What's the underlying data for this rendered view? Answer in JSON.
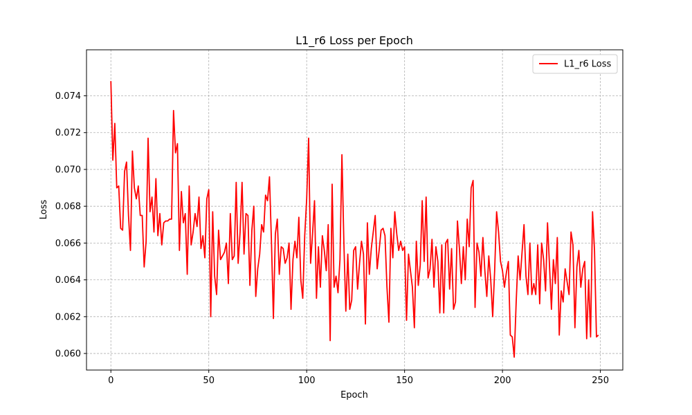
{
  "chart_data": {
    "type": "line",
    "title": "L1_r6 Loss per Epoch",
    "xlabel": "Epoch",
    "ylabel": "Loss",
    "xlim": [
      -12.45,
      261.45
    ],
    "ylim": [
      0.0591,
      0.0765
    ],
    "xticks": [
      0,
      50,
      100,
      150,
      200,
      250
    ],
    "xtick_labels": [
      "0",
      "50",
      "100",
      "150",
      "200",
      "250"
    ],
    "yticks": [
      0.06,
      0.062,
      0.064,
      0.066,
      0.068,
      0.07,
      0.072,
      0.074
    ],
    "ytick_labels": [
      "0.060",
      "0.062",
      "0.064",
      "0.066",
      "0.068",
      "0.070",
      "0.072",
      "0.074"
    ],
    "grid": true,
    "legend_position": "top-right",
    "series": [
      {
        "name": "L1_r6 Loss",
        "color": "#ff0000",
        "x": [
          0,
          1,
          2,
          3,
          4,
          5,
          6,
          7,
          8,
          9,
          10,
          11,
          12,
          13,
          14,
          15,
          16,
          17,
          18,
          19,
          20,
          21,
          22,
          23,
          24,
          25,
          26,
          27,
          28,
          29,
          30,
          31,
          32,
          33,
          34,
          35,
          36,
          37,
          38,
          39,
          40,
          41,
          42,
          43,
          44,
          45,
          46,
          47,
          48,
          49,
          50,
          51,
          52,
          53,
          54,
          55,
          56,
          57,
          58,
          59,
          60,
          61,
          62,
          63,
          64,
          65,
          66,
          67,
          68,
          69,
          70,
          71,
          72,
          73,
          74,
          75,
          76,
          77,
          78,
          79,
          80,
          81,
          82,
          83,
          84,
          85,
          86,
          87,
          88,
          89,
          90,
          91,
          92,
          93,
          94,
          95,
          96,
          97,
          98,
          99,
          100,
          101,
          102,
          103,
          104,
          105,
          106,
          107,
          108,
          109,
          110,
          111,
          112,
          113,
          114,
          115,
          116,
          117,
          118,
          119,
          120,
          121,
          122,
          123,
          124,
          125,
          126,
          127,
          128,
          129,
          130,
          131,
          132,
          133,
          134,
          135,
          136,
          137,
          138,
          139,
          140,
          141,
          142,
          143,
          144,
          145,
          146,
          147,
          148,
          149,
          150,
          151,
          152,
          153,
          154,
          155,
          156,
          157,
          158,
          159,
          160,
          161,
          162,
          163,
          164,
          165,
          166,
          167,
          168,
          169,
          170,
          171,
          172,
          173,
          174,
          175,
          176,
          177,
          178,
          179,
          180,
          181,
          182,
          183,
          184,
          185,
          186,
          187,
          188,
          189,
          190,
          191,
          192,
          193,
          194,
          195,
          196,
          197,
          198,
          199,
          200,
          201,
          202,
          203,
          204,
          205,
          206,
          207,
          208,
          209,
          210,
          211,
          212,
          213,
          214,
          215,
          216,
          217,
          218,
          219,
          220,
          221,
          222,
          223,
          224,
          225,
          226,
          227,
          228,
          229,
          230,
          231,
          232,
          233,
          234,
          235,
          236,
          237,
          238,
          239,
          240,
          241,
          242,
          243,
          244,
          245,
          246,
          247,
          248,
          249
        ],
        "values": [
          0.0748,
          0.0705,
          0.0725,
          0.069,
          0.0691,
          0.0668,
          0.0667,
          0.0699,
          0.0704,
          0.0675,
          0.0656,
          0.071,
          0.069,
          0.0684,
          0.0691,
          0.0675,
          0.0675,
          0.0647,
          0.0661,
          0.0717,
          0.0677,
          0.0685,
          0.0666,
          0.0695,
          0.0664,
          0.0676,
          0.0659,
          0.0671,
          0.0672,
          0.0672,
          0.0673,
          0.0673,
          0.0732,
          0.0709,
          0.0714,
          0.0656,
          0.0688,
          0.0671,
          0.0676,
          0.0643,
          0.0691,
          0.0659,
          0.0666,
          0.0676,
          0.0669,
          0.0685,
          0.0657,
          0.0664,
          0.0652,
          0.0684,
          0.0689,
          0.062,
          0.0677,
          0.0642,
          0.0632,
          0.0667,
          0.0651,
          0.0653,
          0.0655,
          0.066,
          0.0638,
          0.0676,
          0.0651,
          0.0653,
          0.0693,
          0.0649,
          0.0666,
          0.0693,
          0.0654,
          0.0676,
          0.0675,
          0.0637,
          0.0667,
          0.068,
          0.0631,
          0.0646,
          0.0654,
          0.067,
          0.0666,
          0.0686,
          0.0683,
          0.0696,
          0.0661,
          0.0619,
          0.0665,
          0.0673,
          0.0643,
          0.0658,
          0.0657,
          0.0649,
          0.0652,
          0.066,
          0.0624,
          0.0651,
          0.0661,
          0.0652,
          0.0674,
          0.064,
          0.063,
          0.0664,
          0.0684,
          0.0717,
          0.0649,
          0.0665,
          0.0683,
          0.063,
          0.0658,
          0.0636,
          0.0664,
          0.0656,
          0.0645,
          0.067,
          0.0607,
          0.0692,
          0.0636,
          0.0642,
          0.0633,
          0.0651,
          0.0708,
          0.066,
          0.0623,
          0.0654,
          0.0624,
          0.0629,
          0.0656,
          0.0658,
          0.0635,
          0.0649,
          0.0661,
          0.0654,
          0.0616,
          0.0671,
          0.0643,
          0.0657,
          0.0666,
          0.0675,
          0.0646,
          0.0656,
          0.0667,
          0.0668,
          0.0664,
          0.0636,
          0.0617,
          0.0668,
          0.0652,
          0.0677,
          0.0665,
          0.0656,
          0.0661,
          0.0656,
          0.0658,
          0.0618,
          0.0654,
          0.0645,
          0.0636,
          0.0614,
          0.0661,
          0.0637,
          0.0648,
          0.0683,
          0.065,
          0.0685,
          0.0641,
          0.0646,
          0.0662,
          0.0636,
          0.0658,
          0.065,
          0.0622,
          0.0659,
          0.0622,
          0.066,
          0.0662,
          0.0635,
          0.0657,
          0.0624,
          0.0628,
          0.0672,
          0.0657,
          0.0638,
          0.0658,
          0.064,
          0.0673,
          0.0658,
          0.069,
          0.0694,
          0.0625,
          0.066,
          0.0655,
          0.0642,
          0.0663,
          0.0645,
          0.0631,
          0.0653,
          0.064,
          0.062,
          0.0645,
          0.0677,
          0.0666,
          0.065,
          0.0645,
          0.0636,
          0.0644,
          0.065,
          0.061,
          0.0609,
          0.0598,
          0.0628,
          0.0653,
          0.064,
          0.0655,
          0.067,
          0.0642,
          0.0632,
          0.066,
          0.0632,
          0.0638,
          0.0632,
          0.0659,
          0.0627,
          0.066,
          0.0651,
          0.0634,
          0.0671,
          0.0648,
          0.0624,
          0.0651,
          0.0638,
          0.0663,
          0.061,
          0.0634,
          0.0628,
          0.0646,
          0.0639,
          0.0632,
          0.0666,
          0.0659,
          0.0614,
          0.0647,
          0.0656,
          0.0636,
          0.0646,
          0.065,
          0.0608,
          0.064,
          0.0609,
          0.0677,
          0.0656,
          0.0609,
          0.061
        ]
      }
    ]
  }
}
